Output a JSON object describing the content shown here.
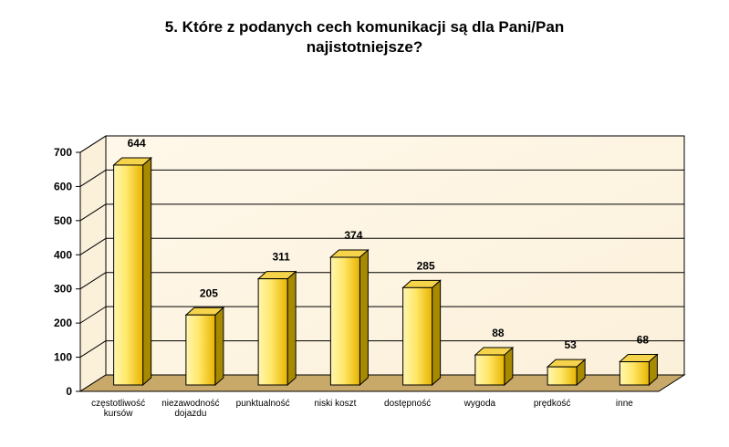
{
  "chart_data": {
    "type": "bar",
    "title_lines": [
      "5. Które z podanych cech komunikacji są dla Pani/Pan",
      "najistotniejsze?"
    ],
    "categories": [
      [
        "częstotliwość",
        "kursów"
      ],
      [
        "niezawodność",
        "dojazdu"
      ],
      [
        "punktualność"
      ],
      [
        "niski koszt"
      ],
      [
        "dostępność"
      ],
      [
        "wygoda"
      ],
      [
        "prędkość"
      ],
      [
        "inne"
      ]
    ],
    "values": [
      644,
      205,
      311,
      374,
      285,
      88,
      53,
      68
    ],
    "yticks": [
      "0",
      "100",
      "200",
      "300",
      "400",
      "500",
      "600",
      "700"
    ],
    "ylim": [
      0,
      700
    ],
    "grid": true,
    "legend": "none",
    "colors": {
      "bar_front_light": "#FFF6B0",
      "bar_front_dark": "#E8B400",
      "bar_side": "#A88A00",
      "bar_top": "#F5D34A",
      "wall": "#FBF0DA",
      "floor": "#C9A96A",
      "gridline": "#000000"
    }
  }
}
